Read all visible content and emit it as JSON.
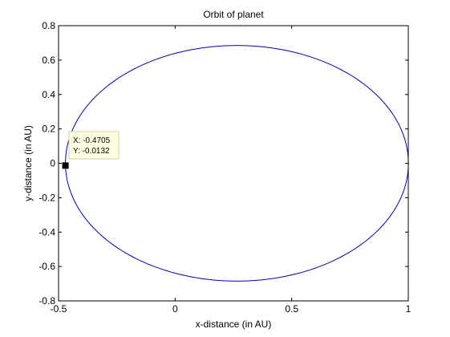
{
  "chart_data": {
    "type": "line",
    "title": "Orbit of planet",
    "xlabel": "x-distance (in AU)",
    "ylabel": "y-distance (in AU)",
    "xlim": [
      -0.5,
      1
    ],
    "ylim": [
      -0.8,
      0.8
    ],
    "grid": false,
    "x_ticks": [
      -0.5,
      0,
      0.5,
      1
    ],
    "x_tick_labels": [
      "-0.5",
      "0",
      "0.5",
      "1"
    ],
    "y_ticks": [
      -0.8,
      -0.6,
      -0.4,
      -0.2,
      0,
      0.2,
      0.4,
      0.6,
      0.8
    ],
    "y_tick_labels": [
      "-0.8",
      "-0.6",
      "-0.4",
      "-0.2",
      "0",
      "0.2",
      "0.4",
      "0.6",
      "0.8"
    ],
    "series": [
      {
        "shape": "ellipse",
        "center": [
          0.265,
          0
        ],
        "semi_axis_x": 0.7355,
        "semi_axis_y": 0.685,
        "color": "#0000b4"
      }
    ],
    "datatip": {
      "x": -0.4705,
      "y": -0.0132,
      "x_text": "X: -0.4705",
      "y_text": "Y: -0.0132"
    }
  }
}
